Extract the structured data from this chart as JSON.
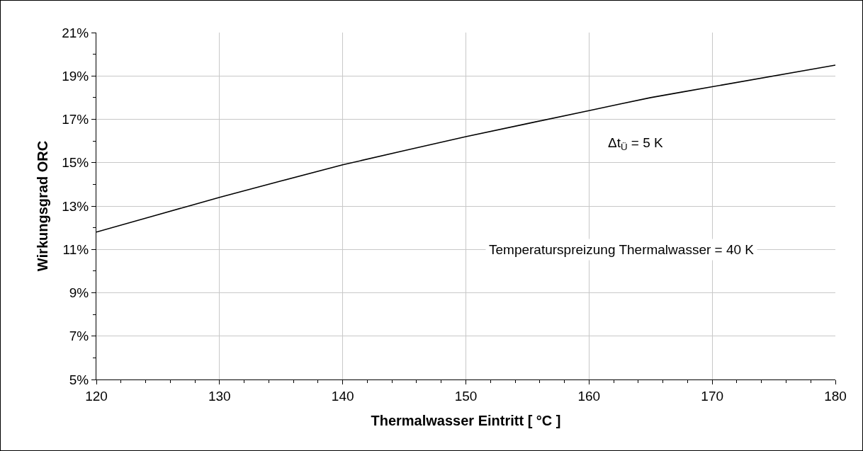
{
  "chart_data": {
    "type": "line",
    "xlabel": "Thermalwasser Eintritt [ °C ]",
    "ylabel": "Wirkungsgrad ORC",
    "x": [
      120,
      125,
      130,
      140,
      150,
      160,
      165,
      170,
      180
    ],
    "series": [
      {
        "color": "#000000",
        "values": [
          11.8,
          12.6,
          13.4,
          14.9,
          16.2,
          17.4,
          18.0,
          18.5,
          19.5
        ]
      }
    ],
    "xlim": [
      120,
      180
    ],
    "xticks": [
      120,
      130,
      140,
      150,
      160,
      170,
      180
    ],
    "ylim": [
      5,
      21
    ],
    "yticks": [
      {
        "value": 5,
        "label": "5%"
      },
      {
        "value": 7,
        "label": "7%"
      },
      {
        "value": 9,
        "label": "9%"
      },
      {
        "value": 11,
        "label": "11%"
      },
      {
        "value": 13,
        "label": "13%"
      },
      {
        "value": 15,
        "label": "15%"
      },
      {
        "value": 17,
        "label": "17%"
      },
      {
        "value": 19,
        "label": "19%"
      },
      {
        "value": 21,
        "label": "21%"
      }
    ],
    "grid": true,
    "marker": "none",
    "line_style": "solid",
    "annotations": [
      "Δt$_{Ü}$ = 5 K",
      "Temperaturspreizung Thermalwasser = 40 K"
    ]
  }
}
